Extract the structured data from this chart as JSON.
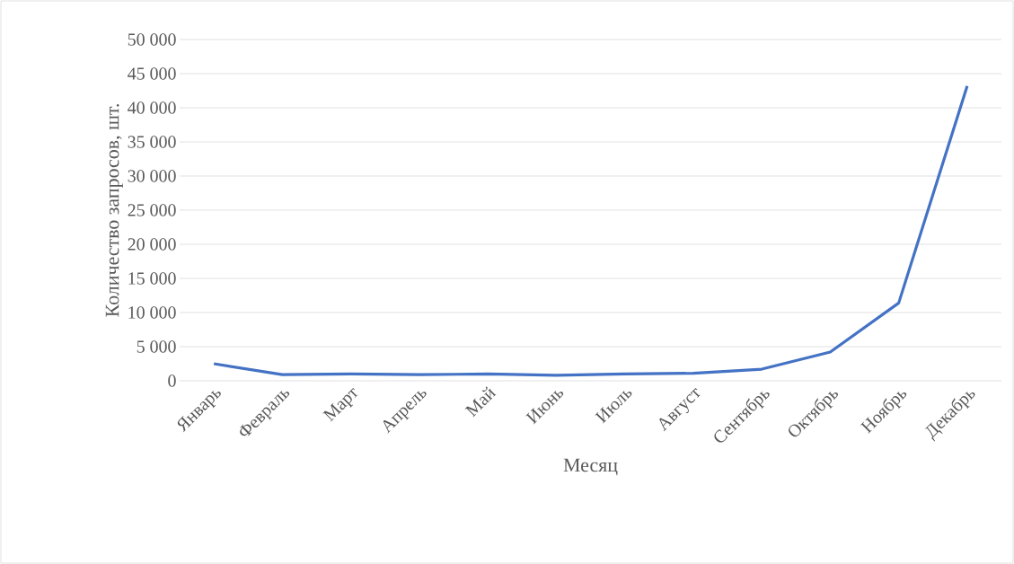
{
  "chart_data": {
    "type": "line",
    "xlabel": "Месяц",
    "ylabel": "Количество запросов, шт.",
    "categories": [
      "Январь",
      "Февраль",
      "Март",
      "Апрель",
      "Май",
      "Июнь",
      "Июль",
      "Август",
      "Сентябрь",
      "Октябрь",
      "Ноябрь",
      "Декабрь"
    ],
    "series": [
      {
        "color": "#4472c4",
        "values": [
          2500,
          900,
          1000,
          900,
          1000,
          800,
          1000,
          1100,
          1700,
          4200,
          11400,
          43200
        ]
      }
    ],
    "ylim": [
      0,
      50000
    ],
    "yticks": [
      0,
      {
        "value": 5000,
        "label": "5 000"
      },
      {
        "value": 10000,
        "label": "10 000"
      },
      {
        "value": 15000,
        "label": "15 000"
      },
      {
        "value": 20000,
        "label": "20 000"
      },
      {
        "value": 25000,
        "label": "25 000"
      },
      {
        "value": 30000,
        "label": "30 000"
      },
      {
        "value": 35000,
        "label": "35 000"
      },
      {
        "value": 40000,
        "label": "40 000"
      },
      {
        "value": 45000,
        "label": "45 000"
      },
      {
        "value": 50000,
        "label": "50 000"
      }
    ],
    "grid": "y"
  }
}
